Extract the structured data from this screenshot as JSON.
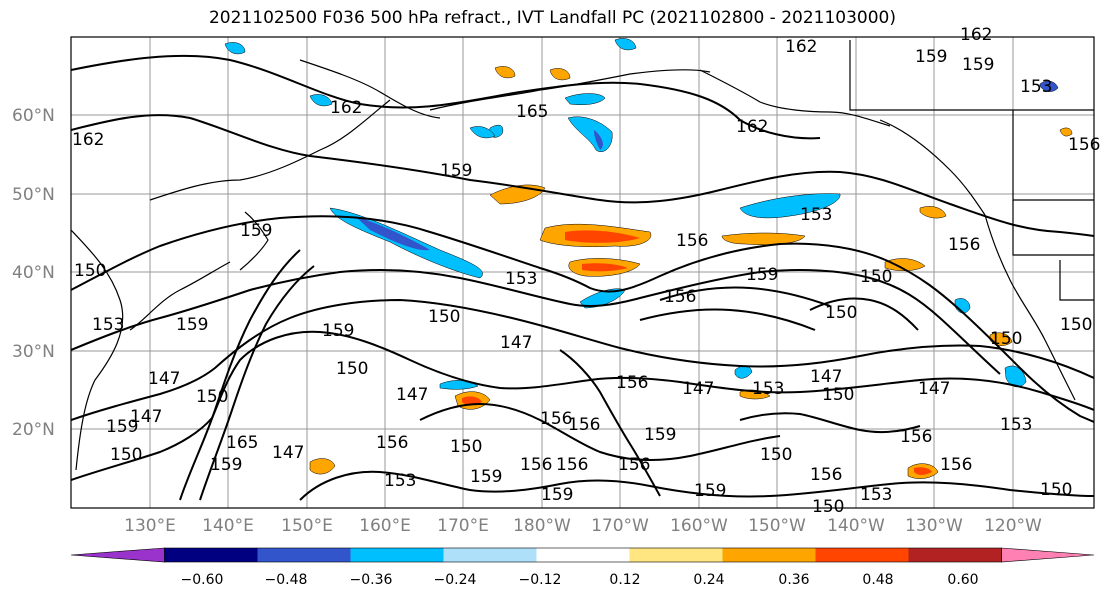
{
  "title": "2021102500 F036 500 hPa refract., IVT Landfall PC (2021102800 - 2021103000)",
  "lat_labels": [
    "60°N",
    "50°N",
    "40°N",
    "30°N",
    "20°N"
  ],
  "lon_labels": [
    "130°E",
    "140°E",
    "150°E",
    "160°E",
    "170°E",
    "180°W",
    "170°W",
    "160°W",
    "150°W",
    "140°W",
    "130°W",
    "120°W"
  ],
  "contour_labels": [
    "162",
    "159",
    "165",
    "162",
    "159",
    "156",
    "153",
    "150",
    "147",
    "159",
    "156",
    "153",
    "150",
    "147",
    "150",
    "153",
    "147",
    "150",
    "147",
    "159",
    "153",
    "159",
    "156",
    "150",
    "147",
    "156",
    "165",
    "162",
    "159",
    "147",
    "156",
    "159",
    "150",
    "156",
    "159",
    "156",
    "150",
    "147",
    "153",
    "150",
    "147",
    "156",
    "156",
    "159",
    "159",
    "150",
    "153",
    "150",
    "156",
    "159",
    "156",
    "150",
    "150",
    "162",
    "159",
    "156",
    "153",
    "150",
    "156",
    "159",
    "162",
    "156",
    "153",
    "150"
  ],
  "colorbar": {
    "ticks": [
      "−0.60",
      "−0.48",
      "−0.36",
      "−0.24",
      "−0.12",
      "0.12",
      "0.24",
      "0.36",
      "0.48",
      "0.60"
    ],
    "colors": [
      "#9933cc",
      "#000080",
      "#3355cc",
      "#00bfff",
      "#aee0fa",
      "#ffffff",
      "#ffe680",
      "#ffa500",
      "#ff4500",
      "#b22222",
      "#ff80b3"
    ]
  },
  "colors": {
    "neg_strong": "#3355cc",
    "neg": "#00bfff",
    "neg_light": "#aee0fa",
    "pos_light": "#ffe680",
    "pos": "#ffa500",
    "pos_strong": "#ff4500",
    "pos_dark": "#b22222",
    "grid": "#999999",
    "contour": "#000000"
  }
}
